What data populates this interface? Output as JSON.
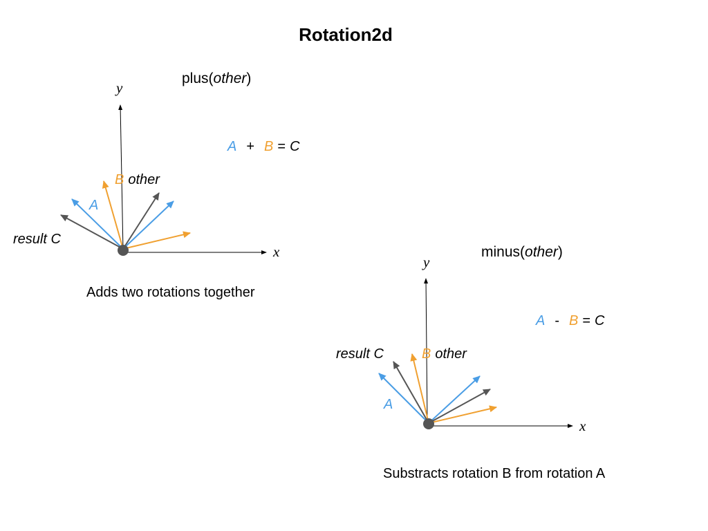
{
  "title": "Rotation2d",
  "colors": {
    "a": "#4a9de5",
    "b": "#f0a030",
    "c": "#555555",
    "axis": "#000000",
    "origin": "#555555"
  },
  "plus": {
    "fn_name": "plus(",
    "fn_arg": "other",
    "fn_close": ")",
    "eq_a": "A",
    "eq_op": "+",
    "eq_b": "B",
    "eq_equals": "=",
    "eq_c": "C",
    "label_b": "B",
    "label_other": "other",
    "label_a": "A",
    "label_result": "result C",
    "axis_x": "x",
    "axis_y": "y",
    "caption": "Adds two rotations together"
  },
  "minus": {
    "fn_name": "minus(",
    "fn_arg": "other",
    "fn_close": ")",
    "eq_a": "A",
    "eq_op": "-",
    "eq_b": "B",
    "eq_equals": "=",
    "eq_c": "C",
    "label_b": "B",
    "label_other": "other",
    "label_a": "A",
    "label_result": "result C",
    "axis_x": "x",
    "axis_y": "y",
    "caption": "Substracts rotation B from rotation A"
  }
}
